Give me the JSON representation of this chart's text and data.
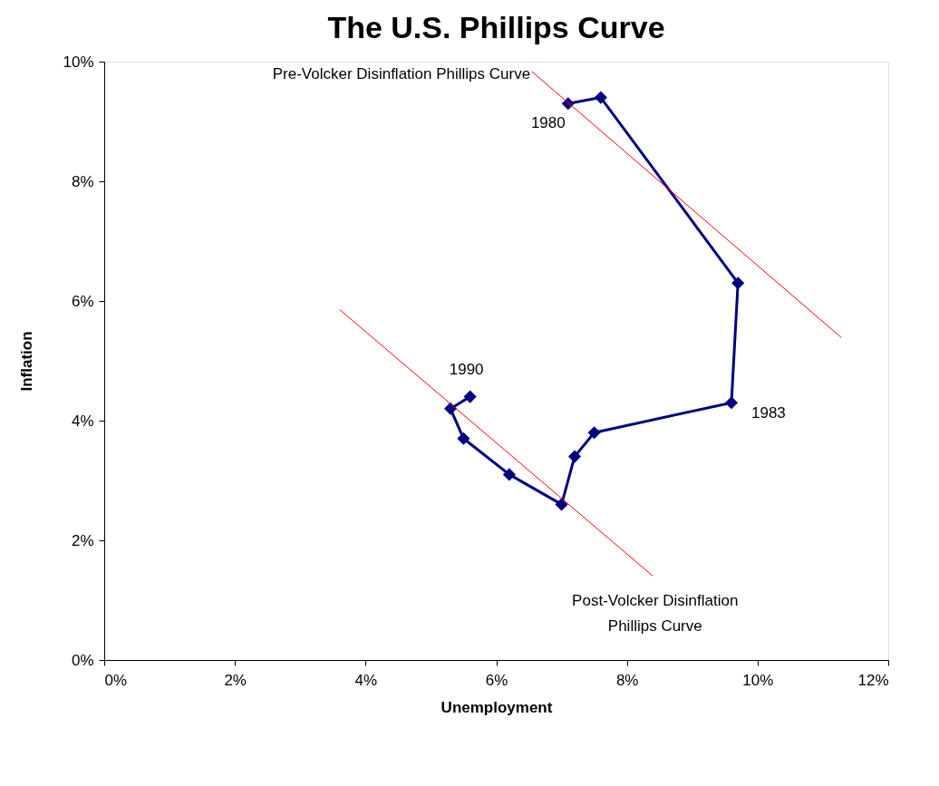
{
  "chart_data": {
    "type": "line",
    "title": "The U.S. Phillips Curve",
    "xlabel": "Unemployment",
    "ylabel": "Inflation",
    "x": [
      7.1,
      7.6,
      9.7,
      9.6,
      7.5,
      7.2,
      7.0,
      6.2,
      5.5,
      5.3,
      5.6
    ],
    "series": [
      {
        "color": "#000080",
        "marker": "diamond",
        "values": [
          9.3,
          9.4,
          6.3,
          4.3,
          3.8,
          3.4,
          2.6,
          3.1,
          3.7,
          4.2,
          4.4
        ]
      },
      {
        "type": "line",
        "color": "#ff0000",
        "marker": "none",
        "x": [
          6.55,
          11.28
        ],
        "values": [
          9.83,
          5.39
        ]
      },
      {
        "type": "line",
        "color": "#ff0000",
        "marker": "none",
        "x": [
          3.61,
          8.39
        ],
        "values": [
          5.85,
          1.41
        ]
      }
    ],
    "xlim": [
      0,
      12
    ],
    "ylim": [
      0,
      10
    ],
    "xticks": [
      {
        "value": 0,
        "label": "0%"
      },
      {
        "value": 2,
        "label": "2%"
      },
      {
        "value": 4,
        "label": "4%"
      },
      {
        "value": 6,
        "label": "6%"
      },
      {
        "value": 8,
        "label": "8%"
      },
      {
        "value": 10,
        "label": "10%"
      },
      {
        "value": 12,
        "label": "12%"
      }
    ],
    "yticks": [
      {
        "value": 0,
        "label": "0%"
      },
      {
        "value": 2,
        "label": "2%"
      },
      {
        "value": 4,
        "label": "4%"
      },
      {
        "value": 6,
        "label": "6%"
      },
      {
        "value": 8,
        "label": "8%"
      },
      {
        "value": 10,
        "label": "10%"
      }
    ],
    "annotations": [
      {
        "text": "1980",
        "x": 7.1,
        "y": 9.3
      },
      {
        "text": "1983",
        "x": 9.6,
        "y": 4.3
      },
      {
        "text": "1990",
        "x": 5.6,
        "y": 4.4
      },
      {
        "text": "Pre-Volcker Disinflation Phillips Curve",
        "x": 6.55,
        "y": 9.83
      },
      {
        "text": "Post-Volcker Disinflation\nPhillips Curve",
        "x": 8.39,
        "y": 1.41
      }
    ],
    "grid": false
  }
}
